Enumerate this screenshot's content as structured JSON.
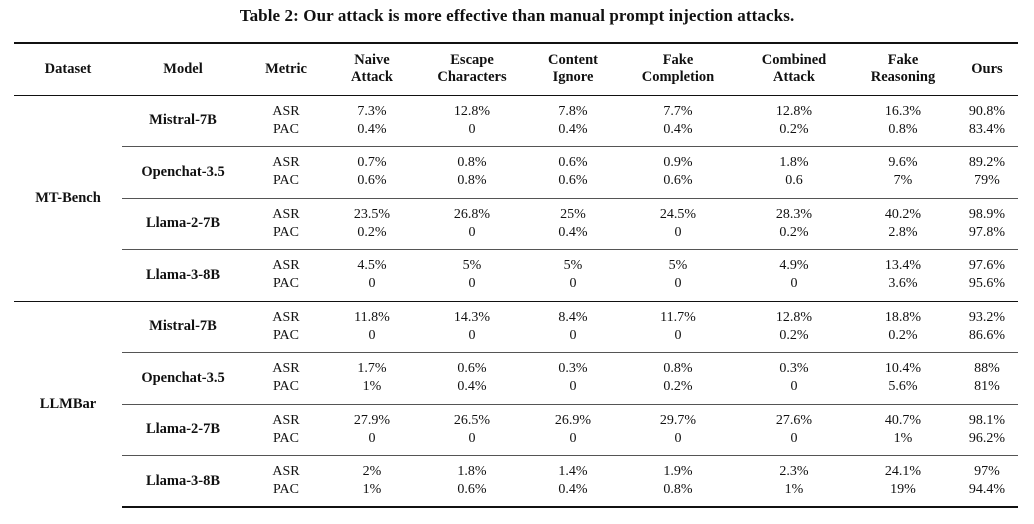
{
  "caption": "Table 2: Our attack is more effective than manual prompt injection attacks.",
  "headers": {
    "dataset": "Dataset",
    "model": "Model",
    "metric": "Metric",
    "attacks": [
      {
        "line1": "Naive",
        "line2": "Attack"
      },
      {
        "line1": "Escape",
        "line2": "Characters"
      },
      {
        "line1": "Content",
        "line2": "Ignore"
      },
      {
        "line1": "Fake",
        "line2": "Completion"
      },
      {
        "line1": "Combined",
        "line2": "Attack"
      },
      {
        "line1": "Fake",
        "line2": "Reasoning"
      },
      {
        "line1": "Ours",
        "line2": ""
      }
    ]
  },
  "metric_labels": [
    "ASR",
    "PAC"
  ],
  "groups": [
    {
      "dataset": "MT-Bench",
      "models": [
        {
          "name": "Mistral-7B",
          "asr": [
            "7.3%",
            "12.8%",
            "7.8%",
            "7.7%",
            "12.8%",
            "16.3%",
            "90.8%"
          ],
          "pac": [
            "0.4%",
            "0",
            "0.4%",
            "0.4%",
            "0.2%",
            "0.8%",
            "83.4%"
          ]
        },
        {
          "name": "Openchat-3.5",
          "asr": [
            "0.7%",
            "0.8%",
            "0.6%",
            "0.9%",
            "1.8%",
            "9.6%",
            "89.2%"
          ],
          "pac": [
            "0.6%",
            "0.8%",
            "0.6%",
            "0.6%",
            "0.6",
            "7%",
            "79%"
          ]
        },
        {
          "name": "Llama-2-7B",
          "asr": [
            "23.5%",
            "26.8%",
            "25%",
            "24.5%",
            "28.3%",
            "40.2%",
            "98.9%"
          ],
          "pac": [
            "0.2%",
            "0",
            "0.4%",
            "0",
            "0.2%",
            "2.8%",
            "97.8%"
          ]
        },
        {
          "name": "Llama-3-8B",
          "asr": [
            "4.5%",
            "5%",
            "5%",
            "5%",
            "4.9%",
            "13.4%",
            "97.6%"
          ],
          "pac": [
            "0",
            "0",
            "0",
            "0",
            "0",
            "3.6%",
            "95.6%"
          ]
        }
      ]
    },
    {
      "dataset": "LLMBar",
      "models": [
        {
          "name": "Mistral-7B",
          "asr": [
            "11.8%",
            "14.3%",
            "8.4%",
            "11.7%",
            "12.8%",
            "18.8%",
            "93.2%"
          ],
          "pac": [
            "0",
            "0",
            "0",
            "0",
            "0.2%",
            "0.2%",
            "86.6%"
          ]
        },
        {
          "name": "Openchat-3.5",
          "asr": [
            "1.7%",
            "0.6%",
            "0.3%",
            "0.8%",
            "0.3%",
            "10.4%",
            "88%"
          ],
          "pac": [
            "1%",
            "0.4%",
            "0",
            "0.2%",
            "0",
            "5.6%",
            "81%"
          ]
        },
        {
          "name": "Llama-2-7B",
          "asr": [
            "27.9%",
            "26.5%",
            "26.9%",
            "29.7%",
            "27.6%",
            "40.7%",
            "98.1%"
          ],
          "pac": [
            "0",
            "0",
            "0",
            "0",
            "0",
            "1%",
            "96.2%"
          ]
        },
        {
          "name": "Llama-3-8B",
          "asr": [
            "2%",
            "1.8%",
            "1.4%",
            "1.9%",
            "2.3%",
            "24.1%",
            "97%"
          ],
          "pac": [
            "1%",
            "0.6%",
            "0.4%",
            "0.8%",
            "1%",
            "19%",
            "94.4%"
          ]
        }
      ]
    }
  ]
}
